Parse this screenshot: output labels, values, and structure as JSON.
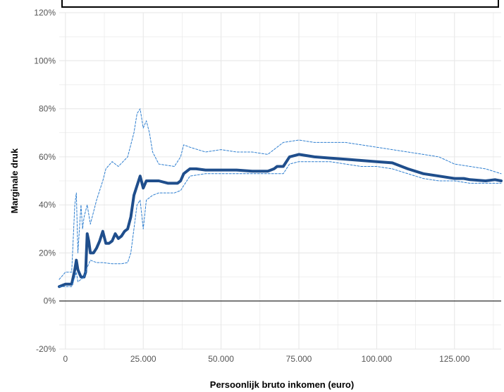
{
  "chart_data": {
    "type": "line",
    "title": "",
    "xlabel": "Persoonlijk bruto inkomen (euro)",
    "ylabel": "Marginale druk",
    "xlim": [
      -2000,
      140000
    ],
    "ylim": [
      -20,
      120
    ],
    "x_ticks": [
      0,
      25000,
      50000,
      75000,
      100000,
      125000
    ],
    "x_tick_labels": [
      "0",
      "25.000",
      "50.000",
      "75.000",
      "100.000",
      "125.000"
    ],
    "y_ticks": [
      -20,
      0,
      20,
      40,
      60,
      80,
      100,
      120
    ],
    "y_tick_labels": [
      "-20%",
      "0%",
      "20%",
      "40%",
      "60%",
      "80%",
      "100%",
      "120%"
    ],
    "grid": true,
    "legend": "none",
    "colors": {
      "main": "#1f4e8c",
      "band": "#2f7fd0",
      "zero_line": "#000000",
      "grid": "#e6e6e6"
    },
    "series": [
      {
        "style": "solid",
        "x": [
          -2000,
          0,
          2000,
          3000,
          3500,
          4000,
          5000,
          6000,
          6500,
          7000,
          7500,
          8000,
          9000,
          10000,
          11000,
          12000,
          13000,
          14000,
          15000,
          16000,
          17000,
          18000,
          19000,
          20000,
          21000,
          22000,
          23000,
          24000,
          25000,
          26000,
          27000,
          30000,
          33000,
          35000,
          36000,
          37000,
          38000,
          39000,
          40000,
          42000,
          45000,
          50000,
          55000,
          60000,
          65000,
          67000,
          68000,
          70000,
          72000,
          75000,
          80000,
          85000,
          90000,
          95000,
          100000,
          105000,
          110000,
          115000,
          120000,
          125000,
          128000,
          130000,
          135000,
          138000,
          140000
        ],
        "y": [
          6,
          7,
          7,
          13,
          17,
          13,
          10,
          10,
          12,
          28,
          25,
          20,
          20,
          22,
          25,
          29,
          24,
          24,
          25,
          28,
          26,
          27,
          29,
          30,
          35,
          44,
          48,
          52,
          47,
          50,
          50,
          50,
          49,
          49,
          49,
          50,
          53,
          54,
          55,
          55,
          54.5,
          54.5,
          54.5,
          54,
          54,
          55,
          56,
          56,
          60,
          61,
          60,
          59.5,
          59,
          58.5,
          58,
          57.5,
          55,
          53,
          52,
          51,
          51,
          50.5,
          50,
          50.5,
          50
        ]
      },
      {
        "style": "dashed",
        "x": [
          -2000,
          0,
          2000,
          3000,
          3500,
          4000,
          5000,
          5500,
          6000,
          7000,
          8000,
          10000,
          12000,
          13000,
          15000,
          17000,
          20000,
          22000,
          23000,
          24000,
          25000,
          26000,
          27000,
          28000,
          30000,
          35000,
          37000,
          38000,
          40000,
          45000,
          50000,
          55000,
          60000,
          65000,
          70000,
          75000,
          80000,
          85000,
          90000,
          95000,
          100000,
          105000,
          110000,
          115000,
          120000,
          125000,
          130000,
          135000,
          140000
        ],
        "y": [
          9,
          12,
          12,
          40,
          45,
          20,
          40,
          30,
          35,
          40,
          32,
          42,
          50,
          55,
          58,
          56,
          60,
          70,
          78,
          80,
          72,
          75,
          70,
          62,
          57,
          56,
          60,
          65,
          64,
          62,
          63,
          62,
          62,
          61,
          66,
          67,
          66,
          66,
          66,
          65,
          64,
          63,
          62,
          61,
          60,
          57,
          56,
          55,
          53
        ]
      },
      {
        "style": "dashed",
        "x": [
          -2000,
          0,
          2000,
          3000,
          3500,
          4000,
          5000,
          6000,
          7000,
          8000,
          10000,
          12000,
          15000,
          18000,
          20000,
          21000,
          22000,
          23000,
          24000,
          25000,
          26000,
          28000,
          30000,
          35000,
          37000,
          38000,
          40000,
          45000,
          50000,
          55000,
          60000,
          65000,
          70000,
          72000,
          75000,
          80000,
          85000,
          90000,
          95000,
          100000,
          105000,
          110000,
          115000,
          120000,
          125000,
          130000,
          135000,
          140000
        ],
        "y": [
          6,
          6,
          6,
          10,
          12,
          8,
          9,
          10,
          14,
          17,
          16,
          16,
          15.5,
          15.5,
          16,
          20,
          30,
          40,
          42,
          30,
          42,
          44,
          45,
          45,
          46,
          48,
          52,
          53,
          53,
          53,
          53,
          53,
          53,
          57,
          58,
          58,
          58,
          57,
          56,
          56,
          55,
          53,
          51,
          50,
          50,
          49,
          49,
          49
        ]
      }
    ]
  }
}
